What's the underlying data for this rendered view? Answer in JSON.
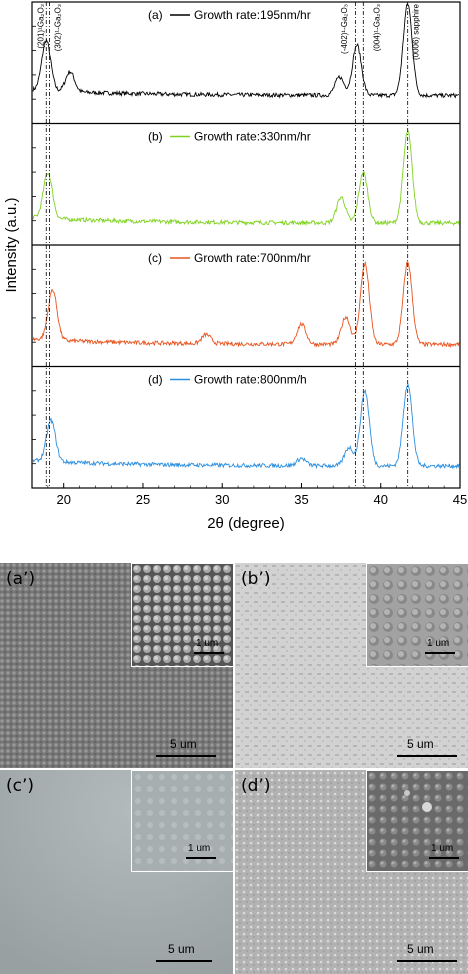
{
  "chart_data": {
    "type": "line",
    "xlabel": "2θ (degree)",
    "ylabel": "Intensity (a.u.)",
    "xlim": [
      18,
      45
    ],
    "xticks": [
      "20",
      "25",
      "30",
      "35",
      "40",
      "45"
    ],
    "reflections": [
      {
        "label": "(201)¹Ga₂O₃",
        "x": 18.9
      },
      {
        "label": "(302)¹-Ga₂O₃",
        "x": 19.1
      },
      {
        "label": "(-402)¹-Ga₂O₃",
        "x": 38.4
      },
      {
        "label": "(004)¹-Ga₂O₃",
        "x": 38.9
      },
      {
        "label": "(0006) sapphire",
        "x": 41.7
      }
    ],
    "series": [
      {
        "panel": "(a)",
        "name": "Growth rate:195nm/hr",
        "color": "#000000",
        "peaks": [
          {
            "x": 18.9,
            "h": 0.55
          },
          {
            "x": 20.4,
            "h": 0.22
          },
          {
            "x": 37.4,
            "h": 0.2
          },
          {
            "x": 38.5,
            "h": 0.55
          },
          {
            "x": 41.7,
            "h": 1.0
          }
        ]
      },
      {
        "panel": "(b)",
        "name": "Growth rate:330nm/hr",
        "color": "#7fd320",
        "peaks": [
          {
            "x": 19.0,
            "h": 0.5
          },
          {
            "x": 37.5,
            "h": 0.28
          },
          {
            "x": 38.9,
            "h": 0.55
          },
          {
            "x": 41.7,
            "h": 1.0
          }
        ]
      },
      {
        "panel": "(c)",
        "name": "Growth rate:700nm/hr",
        "color": "#e8541e",
        "peaks": [
          {
            "x": 19.3,
            "h": 0.55
          },
          {
            "x": 29.0,
            "h": 0.1
          },
          {
            "x": 35.0,
            "h": 0.22
          },
          {
            "x": 37.8,
            "h": 0.3
          },
          {
            "x": 39.0,
            "h": 0.88
          },
          {
            "x": 41.7,
            "h": 0.9
          }
        ]
      },
      {
        "panel": "(d)",
        "name": "Growth rate:800nm/h",
        "color": "#2b8fe0",
        "peaks": [
          {
            "x": 19.2,
            "h": 0.45
          },
          {
            "x": 35.0,
            "h": 0.08
          },
          {
            "x": 38.0,
            "h": 0.2
          },
          {
            "x": 39.0,
            "h": 0.82
          },
          {
            "x": 41.7,
            "h": 0.9
          }
        ]
      }
    ]
  },
  "sem_panels": [
    {
      "label": "(a’)",
      "scale_main": "5 um",
      "scale_inset": "1 um"
    },
    {
      "label": "(b’)",
      "scale_main": "5 um",
      "scale_inset": "1 um"
    },
    {
      "label": "(c’)",
      "scale_main": "5 um",
      "scale_inset": "1 um"
    },
    {
      "label": "(d’)",
      "scale_main": "5 um",
      "scale_inset": "1 um"
    }
  ]
}
